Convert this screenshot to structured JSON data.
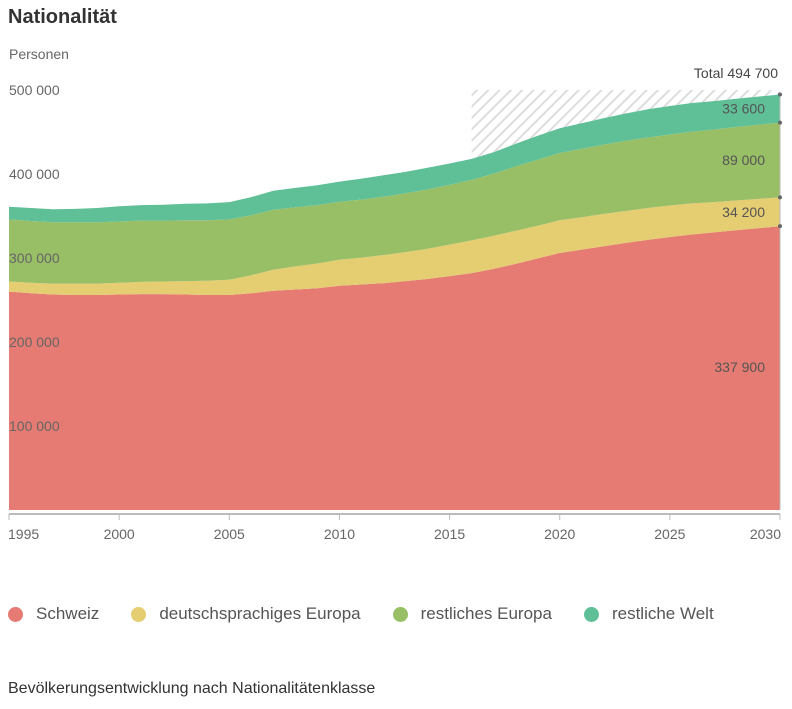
{
  "title": "Nationalität",
  "unit_label": "Personen",
  "caption": "Bevölkerungsentwicklung nach Nationalitätenklasse",
  "colors": {
    "schweiz": "#e57b72",
    "deutschsprachig": "#e5cd72",
    "restEuropa": "#98bf66",
    "restWelt": "#5fc098",
    "axis": "#bbbbbb",
    "tick_text": "#666666"
  },
  "chart_data": {
    "type": "area",
    "stacked": true,
    "title": "Nationalität",
    "ylabel": "Personen",
    "xlabel": "",
    "xlim": [
      1995,
      2030
    ],
    "ylim": [
      0,
      500000
    ],
    "forecast_start": 2016,
    "x_ticks": [
      "1995",
      "2000",
      "2005",
      "2010",
      "2015",
      "2020",
      "2025",
      "2030"
    ],
    "y_ticks": [
      "100 000",
      "200 000",
      "300 000",
      "400 000",
      "500 000"
    ],
    "y_tick_values": [
      100000,
      200000,
      300000,
      400000,
      500000
    ],
    "x": [
      1995,
      1996,
      1997,
      1998,
      1999,
      2000,
      2001,
      2002,
      2003,
      2004,
      2005,
      2006,
      2007,
      2008,
      2009,
      2010,
      2011,
      2012,
      2013,
      2014,
      2015,
      2016,
      2017,
      2018,
      2019,
      2020,
      2021,
      2022,
      2023,
      2024,
      2025,
      2026,
      2027,
      2028,
      2029,
      2030
    ],
    "series": [
      {
        "name": "Schweiz",
        "key": "schweiz",
        "values": [
          260000,
          258000,
          256500,
          256000,
          256000,
          256500,
          257000,
          257000,
          256500,
          256000,
          256000,
          258000,
          261000,
          262500,
          264000,
          267000,
          268500,
          270000,
          272500,
          275000,
          278500,
          282000,
          287000,
          293000,
          299500,
          306000,
          310000,
          314000,
          318000,
          321500,
          325000,
          328000,
          330500,
          333000,
          335500,
          337900
        ]
      },
      {
        "name": "deutschsprachiges Europa",
        "key": "deutschsprachig",
        "values": [
          12000,
          12500,
          13000,
          13500,
          13500,
          14000,
          14500,
          15000,
          16000,
          17000,
          18000,
          21500,
          25000,
          27500,
          29500,
          31000,
          32000,
          33500,
          34500,
          36000,
          37500,
          39000,
          39500,
          39500,
          39000,
          39000,
          38500,
          38500,
          38000,
          38000,
          37500,
          37000,
          36000,
          35500,
          34800,
          34200
        ]
      },
      {
        "name": "restliches Europa",
        "key": "restEuropa",
        "values": [
          74000,
          73500,
          73000,
          73000,
          73000,
          73000,
          73000,
          72500,
          72500,
          72000,
          72000,
          71500,
          71500,
          70500,
          69500,
          69000,
          69000,
          69500,
          70000,
          70500,
          71000,
          72000,
          74000,
          76500,
          78500,
          80000,
          81500,
          82500,
          83500,
          84000,
          84500,
          85500,
          86500,
          87500,
          88300,
          89000
        ]
      },
      {
        "name": "restliche Welt",
        "key": "restWelt",
        "values": [
          15000,
          15500,
          15500,
          16000,
          17000,
          18000,
          18500,
          19000,
          19500,
          20000,
          20500,
          21500,
          22500,
          23000,
          23500,
          24000,
          25000,
          25500,
          25500,
          26000,
          25500,
          25000,
          25500,
          27000,
          28500,
          29500,
          30500,
          31500,
          32500,
          33500,
          34000,
          34000,
          33800,
          33700,
          33600,
          33600
        ]
      }
    ],
    "annotations": {
      "total": "Total 494 700",
      "end_labels": {
        "schweiz": "337 900",
        "deutschsprachig": "34 200",
        "restEuropa": "89 000",
        "restWelt": "33 600"
      }
    },
    "legend": {
      "position": "bottom-left",
      "entries": [
        "Schweiz",
        "deutschsprachiges Europa",
        "restliches Europa",
        "restliche Welt"
      ]
    },
    "grid": false
  }
}
